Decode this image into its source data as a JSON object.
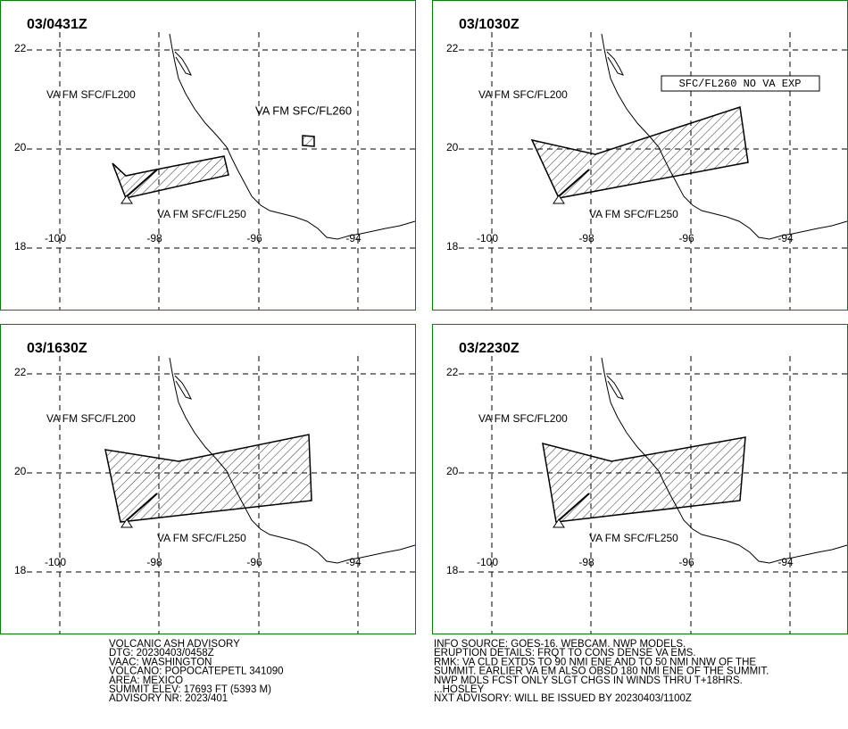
{
  "grid_labels": {
    "lat": [
      "22",
      "20",
      "18"
    ],
    "lon": [
      "-100",
      "-98",
      "-96",
      "-94"
    ]
  },
  "panels": [
    {
      "time": "03/0431Z",
      "labels": [
        "VA FM SFC/FL200",
        "VA FM SFC/FL260",
        "VA FM SFC/FL250"
      ]
    },
    {
      "time": "03/1030Z",
      "labels": [
        "VA FM SFC/FL200",
        "VA FM SFC/FL250"
      ],
      "box": "SFC/FL260 NO VA EXP"
    },
    {
      "time": "03/1630Z",
      "labels": [
        "VA FM SFC/FL200",
        "VA FM SFC/FL250"
      ]
    },
    {
      "time": "03/2230Z",
      "labels": [
        "VA FM SFC/FL200",
        "VA FM SFC/FL250"
      ]
    }
  ],
  "advisory": {
    "left": [
      "VOLCANIC ASH ADVISORY",
      "DTG: 20230403/0458Z",
      "VAAC: WASHINGTON",
      "VOLCANO: POPOCATEPETL 341090",
      "AREA: MEXICO",
      "SUMMIT ELEV: 17693 FT (5393 M)",
      "ADVISORY NR: 2023/401"
    ],
    "right": [
      "INFO SOURCE: GOES-16. WEBCAM. NWP MODELS.",
      "ERUPTION DETAILS: FRQT TO CONS DENSE VA EMS.",
      "RMK: VA CLD EXTDS TO 90 NMI ENE AND TO 50 NMI NNW OF THE",
      "SUMMIT. EARLIER VA EM ALSO OBSD 180 NMI ENE OF THE SUMMIT.",
      "NWP MDLS FCST ONLY SLGT CHGS IN WINDS THRU T+18HRS.",
      "...HOSLEY",
      "NXT ADVISORY: WILL BE ISSUED BY 20230403/1100Z"
    ]
  }
}
